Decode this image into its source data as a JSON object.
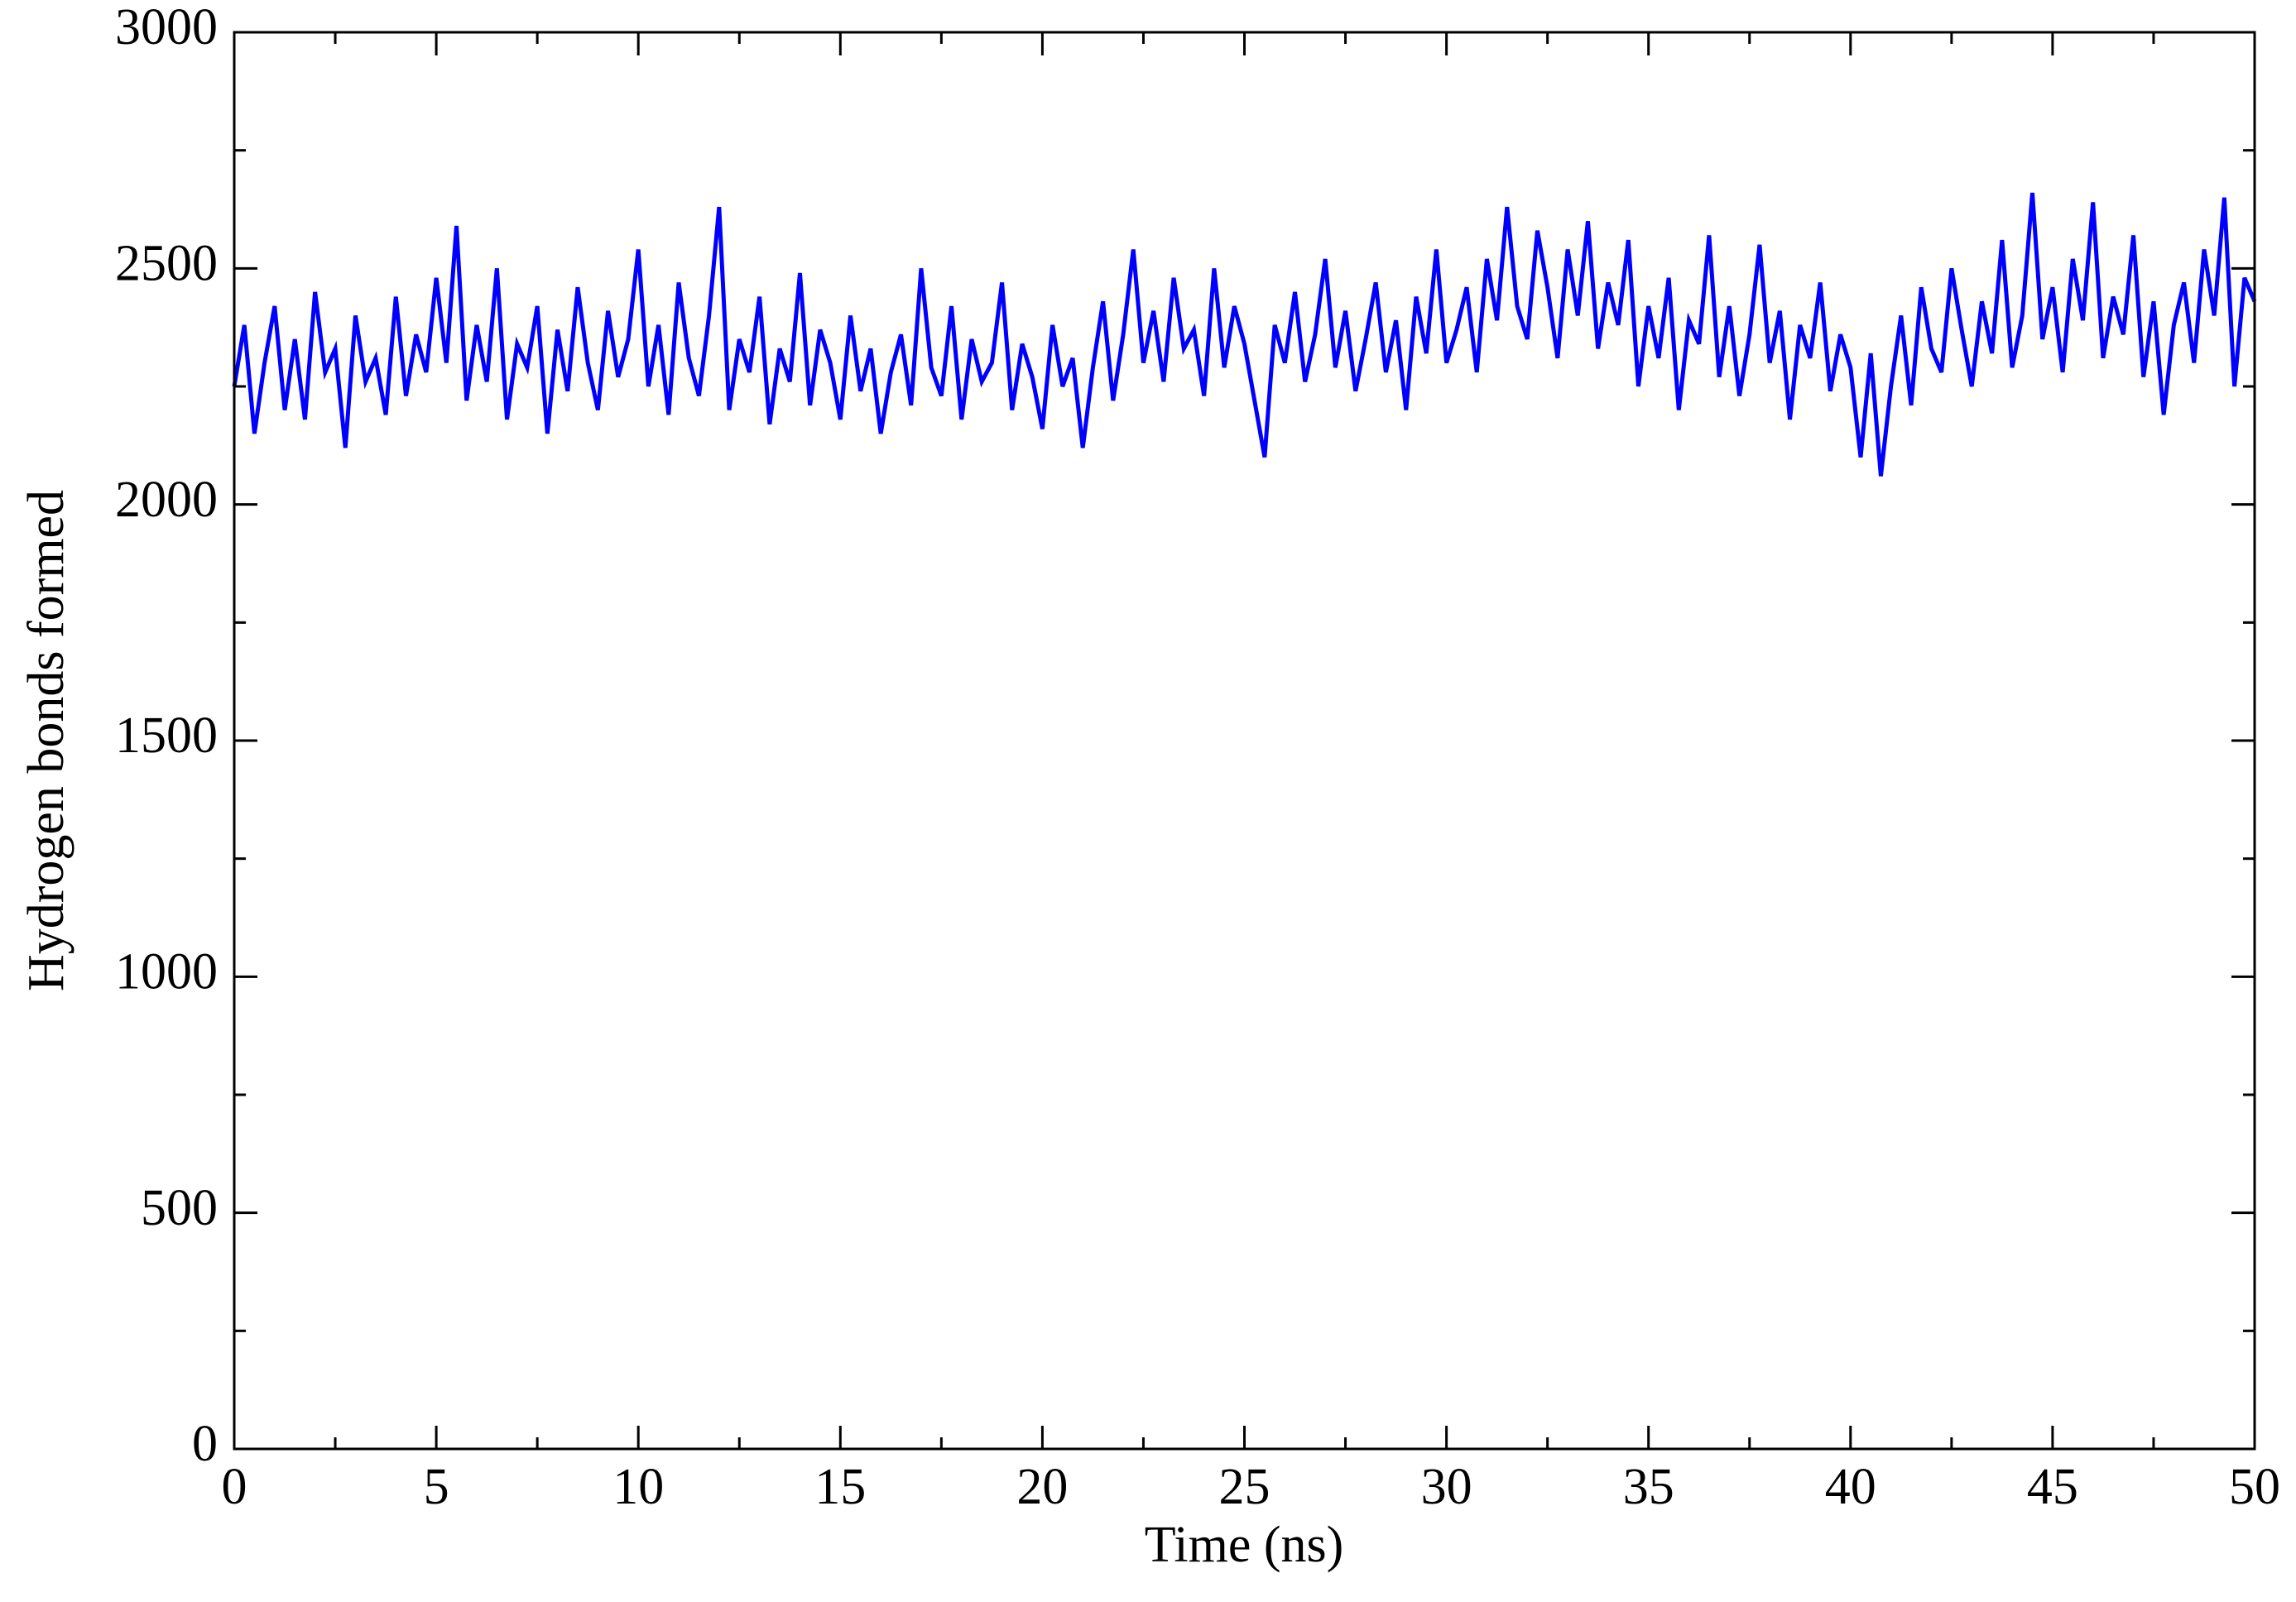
{
  "chart_data": {
    "type": "line",
    "xlabel": "Time (ns)",
    "ylabel": "Hydrogen bonds formed",
    "color": "#0000ff",
    "xlim": [
      0,
      50
    ],
    "ylim": [
      0,
      3000
    ],
    "xticks": [
      0,
      5,
      10,
      15,
      20,
      25,
      30,
      35,
      40,
      45,
      50
    ],
    "yticks": [
      0,
      500,
      1000,
      1500,
      2000,
      2500,
      3000
    ],
    "xminorticks": [
      2.5,
      7.5,
      12.5,
      17.5,
      22.5,
      27.5,
      32.5,
      37.5,
      42.5,
      47.5
    ],
    "yminorticks": [
      250,
      750,
      1250,
      1750,
      2250,
      2750
    ],
    "x": [
      0,
      0.25,
      0.5,
      0.75,
      1,
      1.25,
      1.5,
      1.75,
      2,
      2.25,
      2.5,
      2.75,
      3,
      3.25,
      3.5,
      3.75,
      4,
      4.25,
      4.5,
      4.75,
      5,
      5.25,
      5.5,
      5.75,
      6,
      6.25,
      6.5,
      6.75,
      7,
      7.25,
      7.5,
      7.75,
      8,
      8.25,
      8.5,
      8.75,
      9,
      9.25,
      9.5,
      9.75,
      10,
      10.25,
      10.5,
      10.75,
      11,
      11.25,
      11.5,
      11.75,
      12,
      12.25,
      12.5,
      12.75,
      13,
      13.25,
      13.5,
      13.75,
      14,
      14.25,
      14.5,
      14.75,
      15,
      15.25,
      15.5,
      15.75,
      16,
      16.25,
      16.5,
      16.75,
      17,
      17.25,
      17.5,
      17.75,
      18,
      18.25,
      18.5,
      18.75,
      19,
      19.25,
      19.5,
      19.75,
      20,
      20.25,
      20.5,
      20.75,
      21,
      21.25,
      21.5,
      21.75,
      22,
      22.25,
      22.5,
      22.75,
      23,
      23.25,
      23.5,
      23.75,
      24,
      24.25,
      24.5,
      24.75,
      25,
      25.25,
      25.5,
      25.75,
      26,
      26.25,
      26.5,
      26.75,
      27,
      27.25,
      27.5,
      27.75,
      28,
      28.25,
      28.5,
      28.75,
      29,
      29.25,
      29.5,
      29.75,
      30,
      30.25,
      30.5,
      30.75,
      31,
      31.25,
      31.5,
      31.75,
      32,
      32.25,
      32.5,
      32.75,
      33,
      33.25,
      33.5,
      33.75,
      34,
      34.25,
      34.5,
      34.75,
      35,
      35.25,
      35.5,
      35.75,
      36,
      36.25,
      36.5,
      36.75,
      37,
      37.25,
      37.5,
      37.75,
      38,
      38.25,
      38.5,
      38.75,
      39,
      39.25,
      39.5,
      39.75,
      40,
      40.25,
      40.5,
      40.75,
      41,
      41.25,
      41.5,
      41.75,
      42,
      42.25,
      42.5,
      42.75,
      43,
      43.25,
      43.5,
      43.75,
      44,
      44.25,
      44.5,
      44.75,
      45,
      45.25,
      45.5,
      45.75,
      46,
      46.25,
      46.5,
      46.75,
      47,
      47.25,
      47.5,
      47.75,
      48,
      48.25,
      48.5,
      48.75,
      49,
      49.25,
      49.5,
      49.75,
      50
    ],
    "values": [
      2250,
      2380,
      2150,
      2300,
      2420,
      2200,
      2350,
      2180,
      2450,
      2280,
      2330,
      2120,
      2400,
      2260,
      2310,
      2190,
      2440,
      2230,
      2360,
      2280,
      2480,
      2300,
      2590,
      2220,
      2380,
      2260,
      2500,
      2180,
      2340,
      2290,
      2420,
      2150,
      2370,
      2240,
      2460,
      2300,
      2200,
      2410,
      2270,
      2350,
      2540,
      2250,
      2380,
      2190,
      2470,
      2310,
      2230,
      2400,
      2630,
      2200,
      2350,
      2280,
      2440,
      2170,
      2330,
      2260,
      2490,
      2210,
      2370,
      2300,
      2180,
      2400,
      2240,
      2330,
      2150,
      2280,
      2360,
      2210,
      2500,
      2290,
      2230,
      2420,
      2180,
      2350,
      2260,
      2300,
      2470,
      2200,
      2340,
      2270,
      2160,
      2380,
      2250,
      2310,
      2120,
      2290,
      2430,
      2220,
      2360,
      2540,
      2300,
      2410,
      2260,
      2480,
      2330,
      2370,
      2230,
      2500,
      2290,
      2420,
      2340,
      2220,
      2100,
      2380,
      2300,
      2450,
      2260,
      2360,
      2520,
      2290,
      2410,
      2240,
      2350,
      2470,
      2280,
      2390,
      2200,
      2440,
      2320,
      2540,
      2300,
      2370,
      2460,
      2280,
      2520,
      2390,
      2630,
      2420,
      2350,
      2580,
      2460,
      2310,
      2540,
      2400,
      2600,
      2330,
      2470,
      2380,
      2560,
      2250,
      2420,
      2310,
      2480,
      2200,
      2390,
      2340,
      2570,
      2270,
      2420,
      2230,
      2360,
      2550,
      2300,
      2410,
      2180,
      2380,
      2310,
      2470,
      2240,
      2360,
      2290,
      2100,
      2320,
      2060,
      2250,
      2400,
      2210,
      2460,
      2330,
      2280,
      2500,
      2370,
      2250,
      2430,
      2320,
      2560,
      2290,
      2400,
      2660,
      2350,
      2460,
      2280,
      2520,
      2390,
      2640,
      2310,
      2440,
      2360,
      2570,
      2270,
      2430,
      2190,
      2380,
      2470,
      2300,
      2540,
      2400,
      2650,
      2250,
      2480,
      2430
    ]
  }
}
